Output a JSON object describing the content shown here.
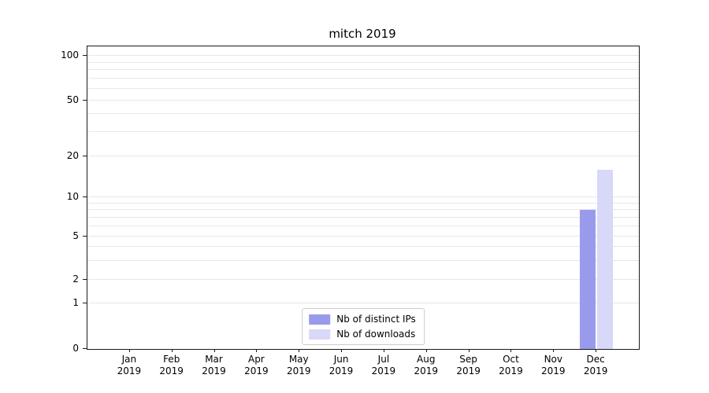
{
  "title": "mitch 2019",
  "chart_data": {
    "type": "bar",
    "title": "mitch 2019",
    "categories": [
      "Jan 2019",
      "Feb 2019",
      "Mar 2019",
      "Apr 2019",
      "May 2019",
      "Jun 2019",
      "Jul 2019",
      "Aug 2019",
      "Sep 2019",
      "Oct 2019",
      "Nov 2019",
      "Dec 2019"
    ],
    "series": [
      {
        "name": "Nb of distinct IPs",
        "color": "#9a9aec",
        "values": [
          0,
          0,
          0,
          0,
          0,
          0,
          0,
          0,
          0,
          0,
          0,
          8
        ]
      },
      {
        "name": "Nb of downloads",
        "color": "#d8d8f8",
        "values": [
          0,
          0,
          0,
          0,
          0,
          0,
          0,
          0,
          0,
          0,
          0,
          16
        ]
      }
    ],
    "yscale": "symlog",
    "ytick_values": [
      0,
      1,
      2,
      5,
      10,
      20,
      50,
      100
    ],
    "ylim": [
      0,
      110
    ],
    "grid": "horizontal",
    "legend_position": "lower center"
  },
  "legend": {
    "items": [
      {
        "label": "Nb of distinct IPs",
        "color": "#9a9aec"
      },
      {
        "label": "Nb of downloads",
        "color": "#d8d8f8"
      }
    ]
  }
}
